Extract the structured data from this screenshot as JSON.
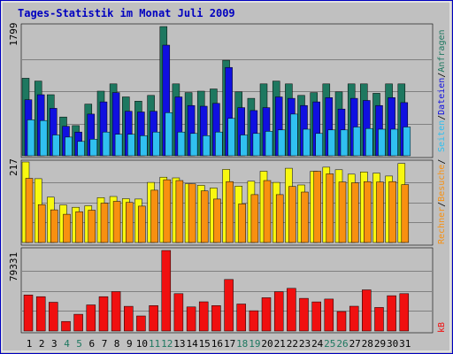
{
  "title": "Tages-Statistik im Monat Juli 2009",
  "colors": {
    "frame": "#0000c0",
    "background": "#c0c0c0",
    "title": "#0000c0",
    "hits": "#1e7860",
    "files": "#1010e0",
    "pages": "#30c0f0",
    "visits": "#f8f810",
    "sites": "#f89010",
    "kbytes": "#f01010",
    "weekend_day": "#1e7860",
    "weekday": "#000000"
  },
  "legend": {
    "hits": "Anfragen",
    "files": "Dateien",
    "pages": "Seiten",
    "visits": "Besuche",
    "sites": "Rechner",
    "kbytes": "kB",
    "sep1": "/",
    "sep2": "/",
    "sep3": "/",
    "sep4": "/"
  },
  "chart_data": {
    "type": "bar",
    "title": "Tages-Statistik im Monat Juli 2009",
    "categories": [
      "1",
      "2",
      "3",
      "4",
      "5",
      "6",
      "7",
      "8",
      "9",
      "10",
      "11",
      "12",
      "13",
      "14",
      "15",
      "16",
      "17",
      "18",
      "19",
      "20",
      "21",
      "22",
      "23",
      "24",
      "25",
      "26",
      "27",
      "28",
      "29",
      "30",
      "31"
    ],
    "weekend_days": [
      "4",
      "5",
      "11",
      "12",
      "18",
      "19",
      "25",
      "26"
    ],
    "panels": [
      {
        "name": "requests",
        "ymax_label": "1799",
        "ymax": 1799,
        "series": [
          {
            "name": "Anfragen",
            "color_key": "hits",
            "values": [
              1080,
              1040,
              850,
              540,
              420,
              720,
              900,
              1000,
              820,
              760,
              840,
              1799,
              1000,
              880,
              900,
              930,
              1330,
              890,
              800,
              1000,
              1040,
              1000,
              840,
              880,
              1000,
              890,
              1000,
              1000,
              870,
              1000,
              1000
            ]
          },
          {
            "name": "Dateien",
            "color_key": "files",
            "values": [
              780,
              850,
              660,
              410,
              330,
              580,
              750,
              880,
              620,
              610,
              620,
              1540,
              820,
              700,
              690,
              730,
              1230,
              670,
              630,
              670,
              820,
              800,
              700,
              750,
              810,
              650,
              800,
              770,
              700,
              810,
              740
            ]
          },
          {
            "name": "Seiten",
            "color_key": "pages",
            "values": [
              500,
              490,
              290,
              260,
              200,
              230,
              330,
              300,
              300,
              280,
              330,
              600,
              330,
              310,
              280,
              330,
              520,
              290,
              310,
              340,
              360,
              580,
              370,
              310,
              360,
              360,
              400,
              380,
              370,
              370,
              400
            ]
          }
        ]
      },
      {
        "name": "visits",
        "ymax_label": "217",
        "ymax": 217,
        "series": [
          {
            "name": "Besuche",
            "color_key": "visits",
            "values": [
              217,
              172,
              122,
              101,
              95,
              99,
              121,
              124,
              118,
              117,
              162,
              176,
              174,
              158,
              154,
              147,
              197,
              152,
              165,
              192,
              162,
              200,
              155,
              192,
              203,
              196,
              184,
              190,
              187,
              179,
              213
            ]
          },
          {
            "name": "Rechner",
            "color_key": "sites",
            "values": [
              173,
              102,
              88,
              76,
              83,
              87,
              106,
              111,
              108,
              98,
              141,
              169,
              167,
              158,
              139,
              117,
              164,
              104,
              129,
              167,
              129,
              151,
              136,
              192,
              185,
              163,
              161,
              164,
              163,
              164,
              156
            ]
          }
        ]
      },
      {
        "name": "kbytes",
        "ymax_label": "79331",
        "ymax": 79331,
        "series": [
          {
            "name": "kB",
            "color_key": "kbytes",
            "values": [
              35500,
              33800,
              28300,
              9400,
              16500,
              25700,
              33800,
              38800,
              24300,
              14800,
              25000,
              79331,
              36800,
              23700,
              28800,
              25000,
              50700,
              26600,
              20000,
              32800,
              38700,
              42000,
              32200,
              28700,
              31500,
              19200,
              24400,
              40500,
              23200,
              34800,
              36800
            ]
          }
        ]
      }
    ]
  }
}
